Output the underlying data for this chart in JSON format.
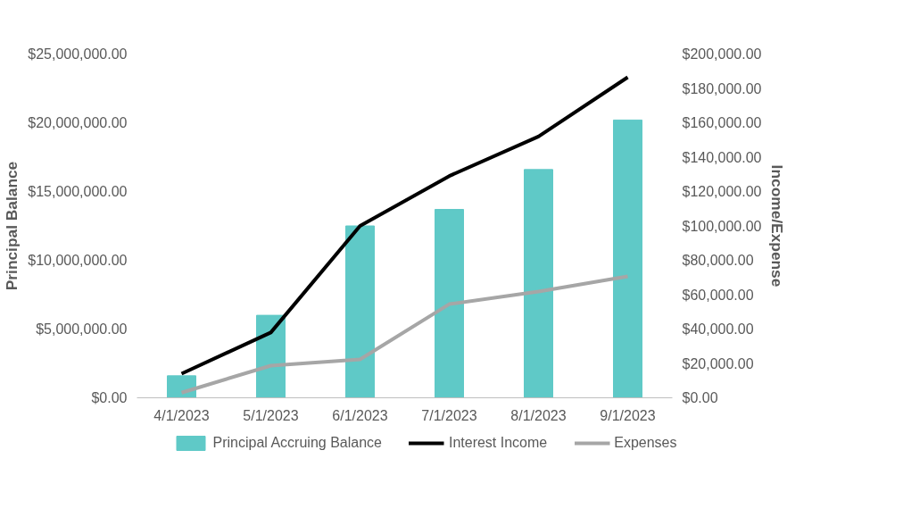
{
  "chart_data": {
    "type": "bar",
    "categories": [
      "4/1/2023",
      "5/1/2023",
      "6/1/2023",
      "7/1/2023",
      "8/1/2023",
      "9/1/2023"
    ],
    "ylabel": "Principal Balance",
    "y2label": "Income/Expense",
    "series": [
      {
        "name": "Principal Accruing Balance",
        "type": "bar",
        "color": "#5fc9c7",
        "values": [
          1600000,
          6000000,
          12500000,
          13700000,
          16600000,
          20200000
        ]
      },
      {
        "name": "Interest Income",
        "type": "line",
        "axis": "y2",
        "color": "#000000",
        "values": [
          14000,
          38000,
          100000,
          129000,
          152000,
          186500
        ]
      },
      {
        "name": "Expenses",
        "type": "line",
        "axis": "y2",
        "color": "#a6a6a6",
        "values": [
          3000,
          18700,
          22300,
          54500,
          61800,
          70600
        ]
      }
    ],
    "ylim": [
      0,
      25000000
    ],
    "yticks": [
      {
        "value": 0,
        "label": "$0.00"
      },
      {
        "value": 5000000,
        "label": "$5,000,000.00"
      },
      {
        "value": 10000000,
        "label": "$10,000,000.00"
      },
      {
        "value": 15000000,
        "label": "$15,000,000.00"
      },
      {
        "value": 20000000,
        "label": "$20,000,000.00"
      },
      {
        "value": 25000000,
        "label": "$25,000,000.00"
      }
    ],
    "y2lim": [
      0,
      200000
    ],
    "y2ticks": [
      {
        "value": 0,
        "label": "$0.00"
      },
      {
        "value": 20000,
        "label": "$20,000.00"
      },
      {
        "value": 40000,
        "label": "$40,000.00"
      },
      {
        "value": 60000,
        "label": "$60,000.00"
      },
      {
        "value": 80000,
        "label": "$80,000.00"
      },
      {
        "value": 100000,
        "label": "$100,000.00"
      },
      {
        "value": 120000,
        "label": "$120,000.00"
      },
      {
        "value": 140000,
        "label": "$140,000.00"
      },
      {
        "value": 160000,
        "label": "$160,000.00"
      },
      {
        "value": 180000,
        "label": "$180,000.00"
      },
      {
        "value": 200000,
        "label": "$200,000.00"
      }
    ],
    "grid": false,
    "legend": "bottom"
  }
}
